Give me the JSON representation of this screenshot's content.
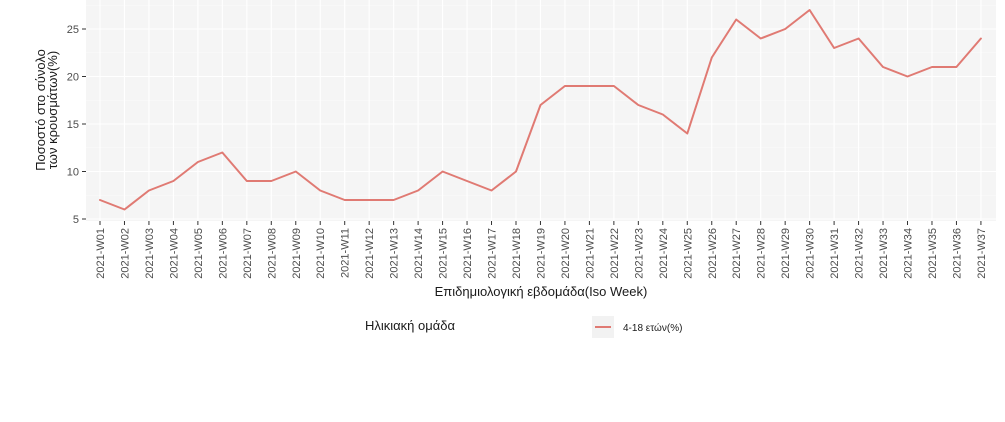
{
  "chart_data": {
    "type": "line",
    "title": "",
    "xlabel": "Επιδημιολογική εβδομάδα(Iso Week)",
    "ylabel": [
      "Ποσοστό στο σύνολο",
      "των κρουσμάτων(%)"
    ],
    "ylim": [
      4.9,
      27.7
    ],
    "yticks": [
      5,
      10,
      15,
      20,
      25
    ],
    "grid": true,
    "legend_position": "bottom",
    "legend_title": "Ηλικιακή ομάδα",
    "categories": [
      "2021-W01",
      "2021-W02",
      "2021-W03",
      "2021-W04",
      "2021-W05",
      "2021-W06",
      "2021-W07",
      "2021-W08",
      "2021-W09",
      "2021-W10",
      "2021-W11",
      "2021-W12",
      "2021-W13",
      "2021-W14",
      "2021-W15",
      "2021-W16",
      "2021-W17",
      "2021-W18",
      "2021-W19",
      "2021-W20",
      "2021-W21",
      "2021-W22",
      "2021-W23",
      "2021-W24",
      "2021-W25",
      "2021-W26",
      "2021-W27",
      "2021-W28",
      "2021-W29",
      "2021-W30",
      "2021-W31",
      "2021-W32",
      "2021-W33",
      "2021-W34",
      "2021-W35",
      "2021-W36",
      "2021-W37"
    ],
    "series": [
      {
        "name": "4-18 ετών(%)",
        "color": "#e07a73",
        "values": [
          7,
          6,
          8,
          9,
          11,
          12,
          9,
          9,
          10,
          8,
          7,
          7,
          7,
          8,
          10,
          9,
          8,
          10,
          17,
          19,
          19,
          19,
          17,
          16,
          14,
          22,
          26,
          24,
          25,
          27,
          23,
          24,
          21,
          20,
          21,
          21,
          24
        ]
      }
    ]
  },
  "colors": {
    "panel_bg": "#f5f5f5",
    "grid_major": "#ffffff",
    "grid_minor": "#fafafa",
    "line": "#e07a73"
  }
}
